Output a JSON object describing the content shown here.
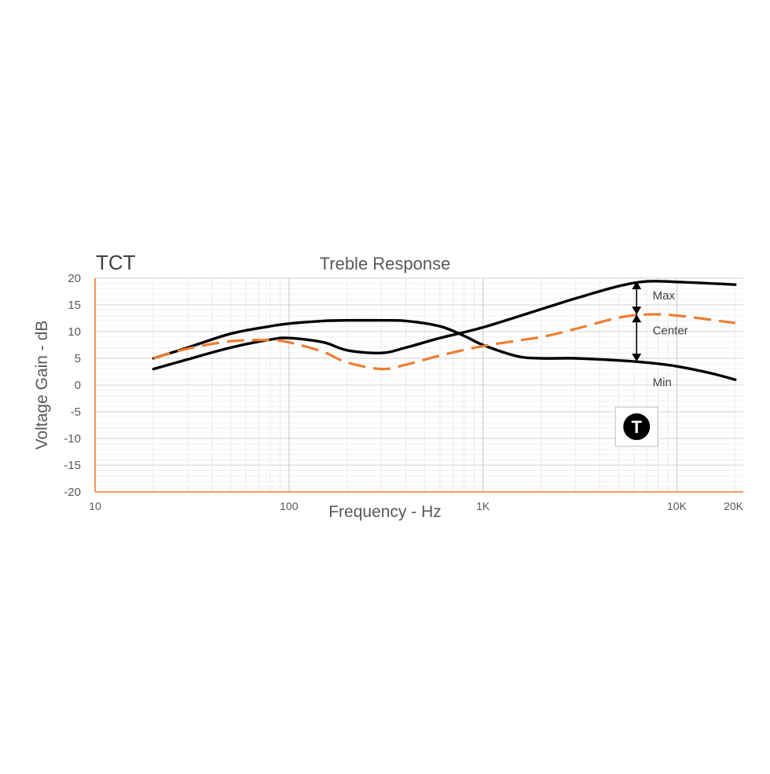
{
  "chart_data": {
    "type": "line",
    "corner_label": "TCT",
    "title": "Treble Response",
    "xlabel": "Frequency - Hz",
    "ylabel": "Voltage Gain - dB",
    "x_scale": "log",
    "xlim": [
      10,
      22000
    ],
    "ylim": [
      -20,
      20
    ],
    "y_ticks": [
      20,
      15,
      10,
      5,
      0,
      -5,
      -10,
      -15,
      -20
    ],
    "x_ticks": [
      {
        "value": 10,
        "label": "10"
      },
      {
        "value": 100,
        "label": "100"
      },
      {
        "value": 1000,
        "label": "1K"
      },
      {
        "value": 10000,
        "label": "10K"
      },
      {
        "value": 20000,
        "label": "20K"
      }
    ],
    "grid": true,
    "axis_color": "#ed7d31",
    "series": [
      {
        "name": "Max",
        "style": "solid",
        "color": "#000000",
        "x": [
          20,
          30,
          50,
          80,
          100,
          150,
          200,
          300,
          400,
          600,
          1000,
          2000,
          3000,
          5000,
          7000,
          10000,
          20000
        ],
        "y": [
          3,
          4.8,
          7,
          8.5,
          8.8,
          8,
          6.5,
          6,
          7,
          8.8,
          10.8,
          14.2,
          16.2,
          18.5,
          19.4,
          19.3,
          18.8
        ]
      },
      {
        "name": "Center",
        "style": "dashed",
        "color": "#ed7d31",
        "x": [
          20,
          30,
          50,
          80,
          100,
          150,
          200,
          300,
          400,
          600,
          1000,
          2000,
          3000,
          5000,
          7000,
          10000,
          20000
        ],
        "y": [
          5,
          6.8,
          8.2,
          8.4,
          8,
          6.2,
          4.2,
          3,
          3.8,
          5.5,
          7.3,
          9,
          10.5,
          12.6,
          13.2,
          13,
          11.6
        ]
      },
      {
        "name": "Min",
        "style": "solid",
        "color": "#000000",
        "x": [
          20,
          30,
          50,
          80,
          100,
          150,
          200,
          300,
          400,
          600,
          800,
          1000,
          1500,
          2000,
          3000,
          5000,
          7000,
          10000,
          15000,
          20000
        ],
        "y": [
          5,
          7,
          9.6,
          11,
          11.5,
          12,
          12.1,
          12.1,
          12,
          11,
          9.2,
          7.5,
          5.4,
          5,
          5,
          4.6,
          4.2,
          3.5,
          2.2,
          1
        ]
      }
    ],
    "annotations": [
      {
        "text": "Max",
        "x": 7500,
        "y": 16.8
      },
      {
        "text": "Center",
        "x": 7500,
        "y": 10.2
      },
      {
        "text": "Min",
        "x": 7500,
        "y": 0.5
      }
    ],
    "arrows": [
      {
        "x": 6200,
        "from": 19.4,
        "to": 13.2
      },
      {
        "x": 6200,
        "from": 13.2,
        "to": 4.4
      }
    ],
    "badge": {
      "text": "T",
      "x": 6200,
      "y": -7.8
    }
  }
}
